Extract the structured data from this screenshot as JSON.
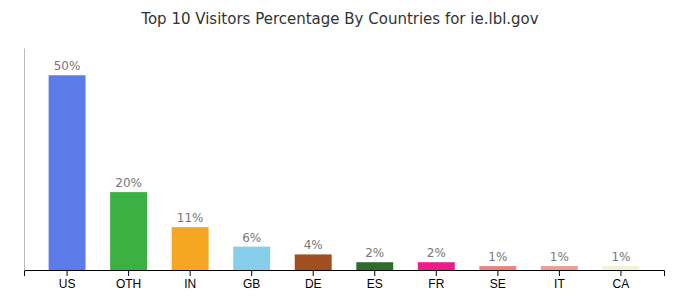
{
  "chart_data": {
    "type": "bar",
    "title": "Top 10 Visitors Percentage By Countries for ie.lbl.gov",
    "categories": [
      "US",
      "OTH",
      "IN",
      "GB",
      "DE",
      "ES",
      "FR",
      "SE",
      "IT",
      "CA"
    ],
    "values": [
      50,
      20,
      11,
      6,
      4,
      2,
      2,
      1,
      1,
      1
    ],
    "value_labels": [
      "50%",
      "20%",
      "11%",
      "6%",
      "4%",
      "2%",
      "2%",
      "1%",
      "1%",
      "1%"
    ],
    "colors": [
      "#5b7be8",
      "#3cb043",
      "#f5a623",
      "#87ceeb",
      "#a05020",
      "#2e6b2e",
      "#e91e8c",
      "#f08080",
      "#e8a090",
      "#f5f0d8"
    ],
    "ylim": [
      0,
      57
    ],
    "data_labels": true,
    "tick_labels": "x",
    "grid": false
  }
}
